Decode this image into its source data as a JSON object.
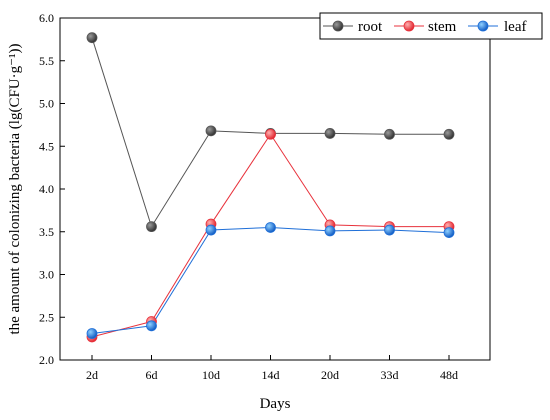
{
  "chart_data": {
    "type": "line",
    "title": "",
    "xlabel": "Days",
    "ylabel": "the amount of colonizing bacteria (lg(CFU·g⁻¹))",
    "categories": [
      "2d",
      "6d",
      "10d",
      "14d",
      "20d",
      "33d",
      "48d"
    ],
    "ylim": [
      2.0,
      6.0
    ],
    "yticks": [
      "2.0",
      "2.5",
      "3.0",
      "3.5",
      "4.0",
      "4.5",
      "5.0",
      "5.5",
      "6.0"
    ],
    "legend_position": "top-right",
    "grid": false,
    "series": [
      {
        "name": "root",
        "color": "#555555",
        "values": [
          5.77,
          3.56,
          4.68,
          4.65,
          4.65,
          4.64,
          4.64
        ]
      },
      {
        "name": "stem",
        "color": "#e8323c",
        "values": [
          2.27,
          2.45,
          3.59,
          4.64,
          3.58,
          3.56,
          3.56
        ]
      },
      {
        "name": "leaf",
        "color": "#1f6fd8",
        "values": [
          2.31,
          2.4,
          3.52,
          3.55,
          3.51,
          3.52,
          3.49
        ]
      }
    ]
  }
}
